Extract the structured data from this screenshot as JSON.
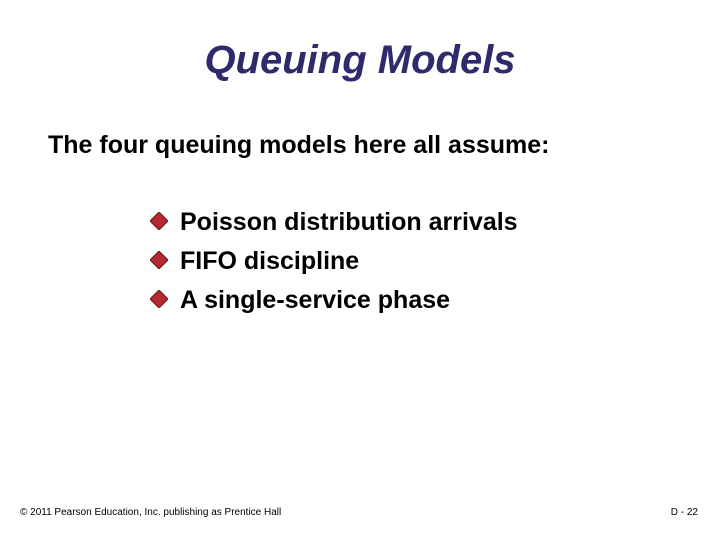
{
  "slide": {
    "title": "Queuing Models",
    "title_color": "#2e2a6b",
    "title_fontsize": 40,
    "intro": "The four queuing models here all assume:",
    "intro_color": "#000000",
    "intro_fontsize": 25,
    "bullets": [
      {
        "text": "Poisson distribution arrivals"
      },
      {
        "text": "FIFO discipline"
      },
      {
        "text": "A single-service phase"
      }
    ],
    "bullet_text_color": "#000000",
    "bullet_text_fontsize": 25,
    "bullet_marker": {
      "shape": "diamond",
      "size": 18,
      "fill": "#b4292e",
      "stroke": "#6a1a1d",
      "stroke_width": 1
    },
    "footer": {
      "copyright": "© 2011 Pearson Education, Inc. publishing as Prentice Hall",
      "page_label": "D - 22",
      "fontsize": 10,
      "color": "#000000"
    },
    "background_color": "#ffffff"
  }
}
